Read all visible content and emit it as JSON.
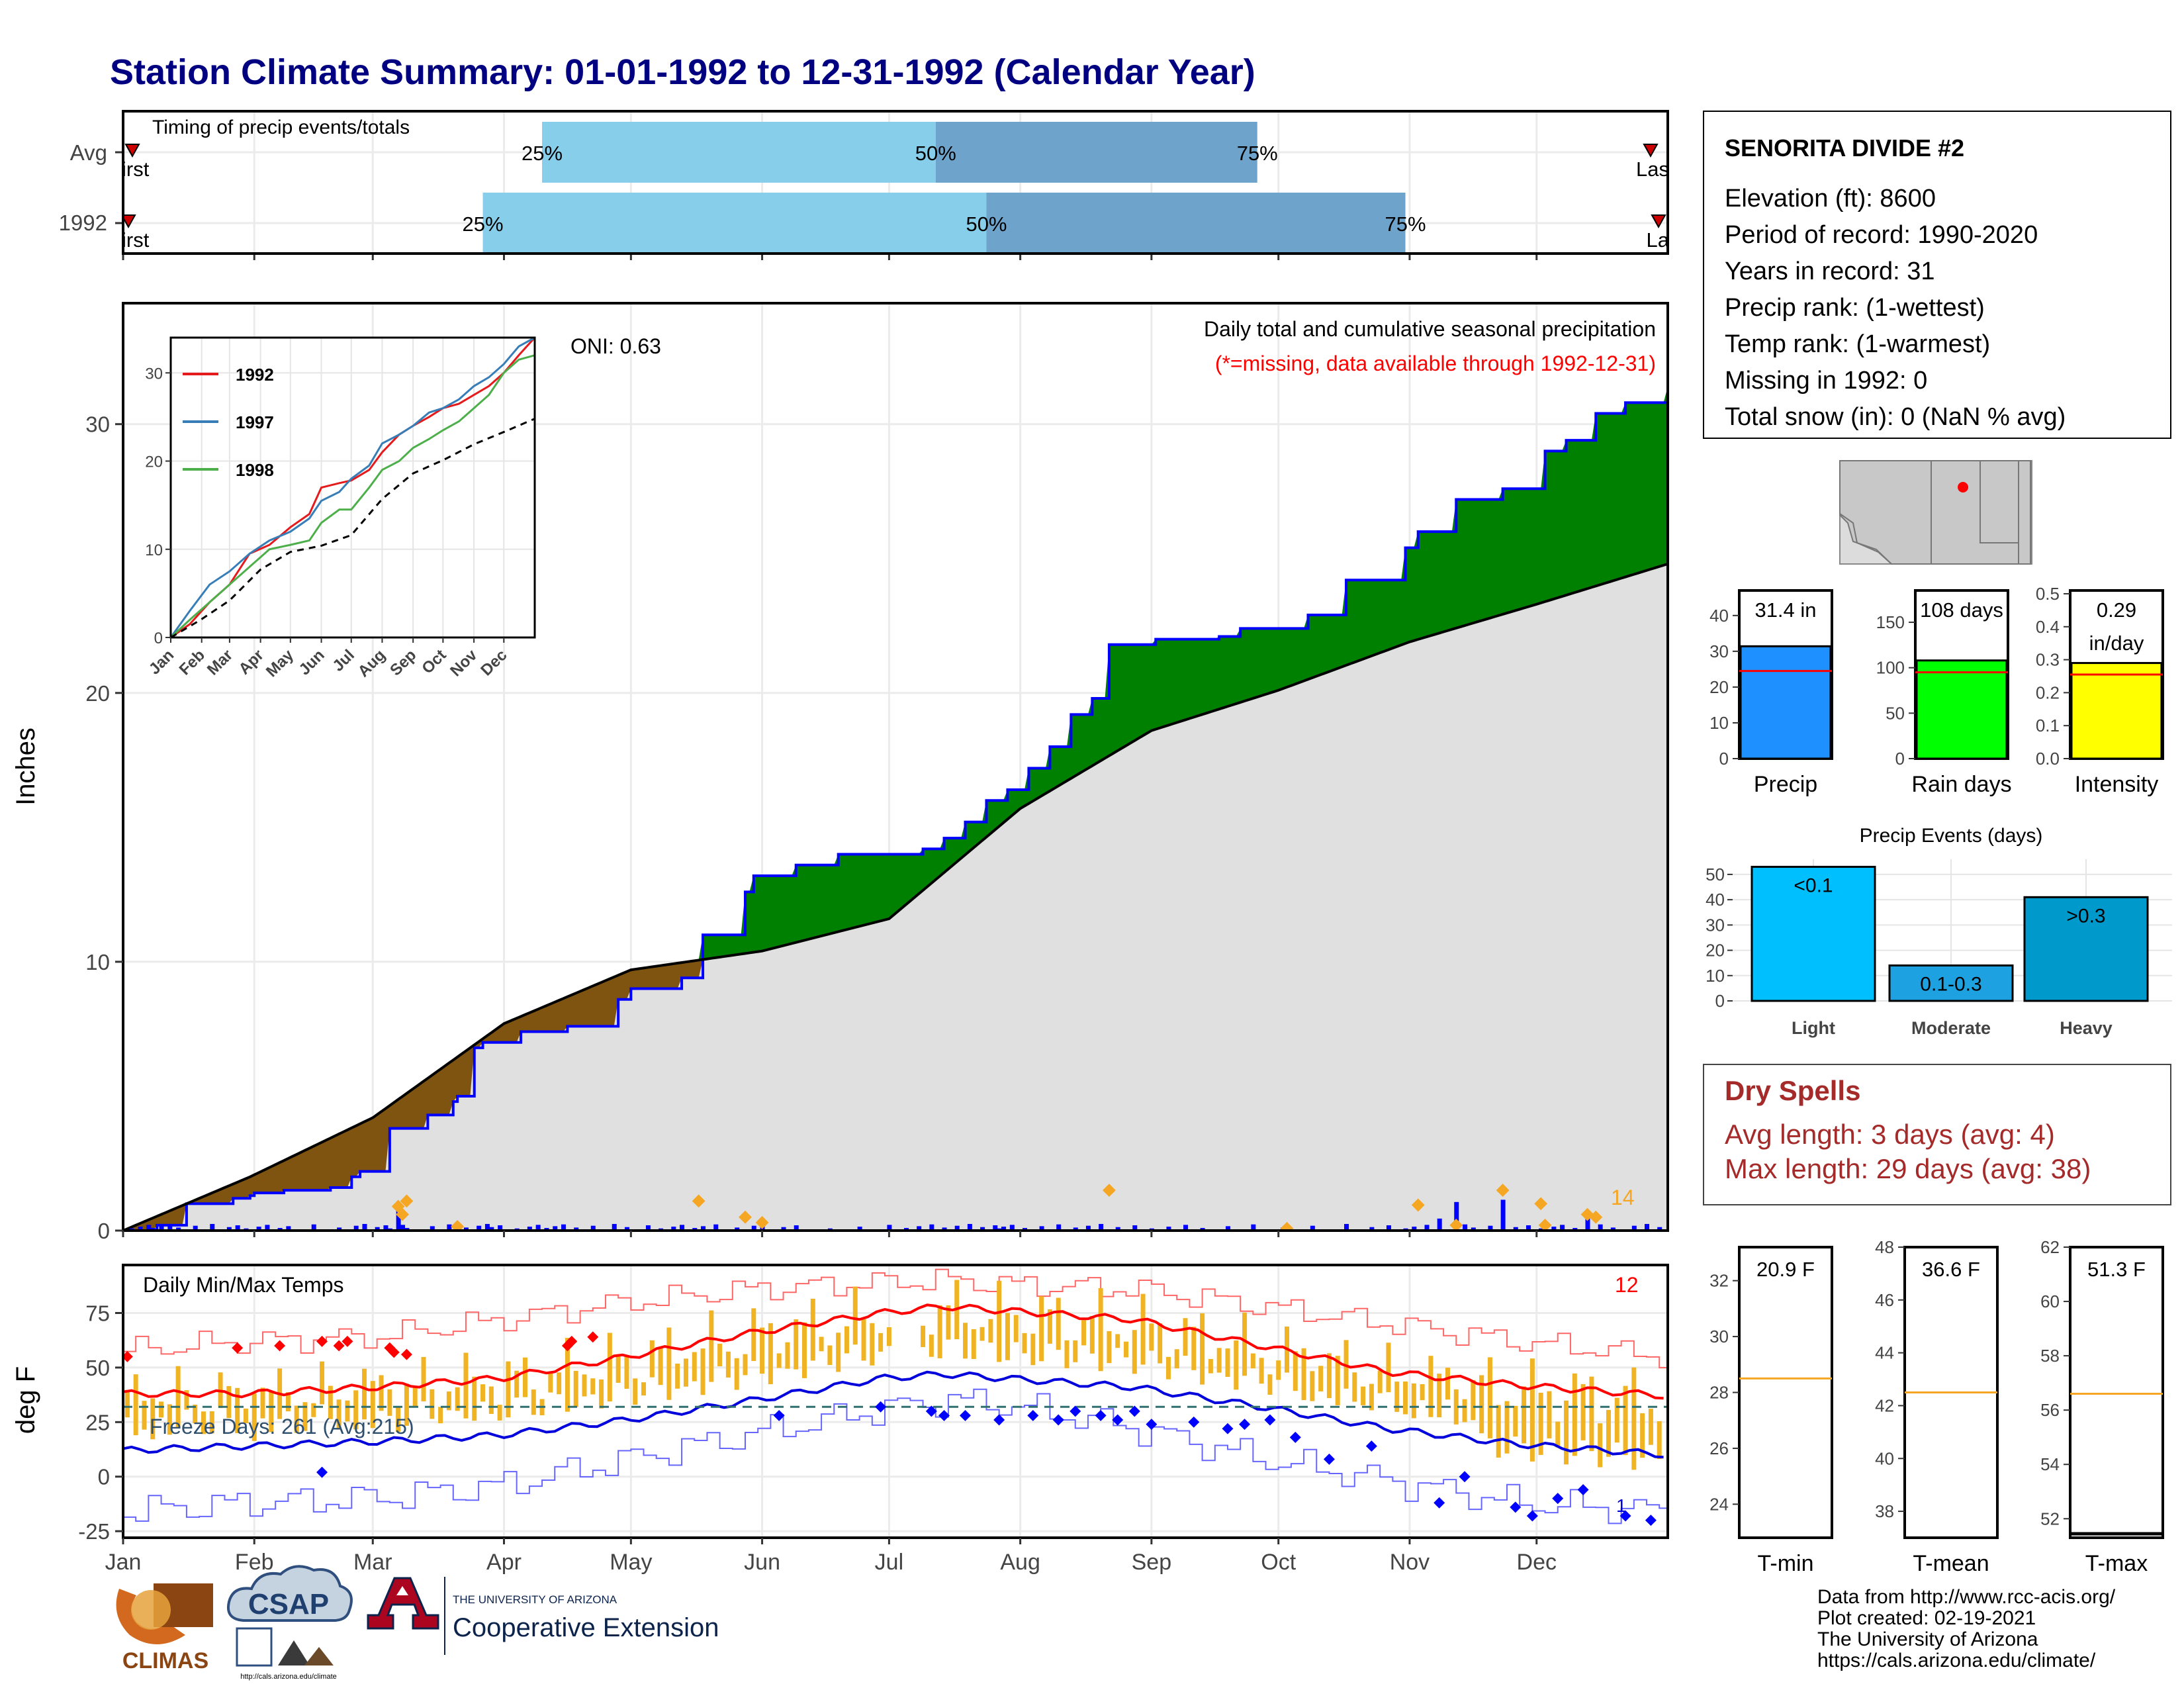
{
  "title": "Station Climate Summary: 01-01-1992 to 12-31-1992 (Calendar Year)",
  "months": [
    "Jan",
    "Feb",
    "Mar",
    "Apr",
    "May",
    "Jun",
    "Jul",
    "Aug",
    "Sep",
    "Oct",
    "Nov",
    "Dec"
  ],
  "colors": {
    "title": "#000080",
    "q_light": "#87ceeb",
    "q_dark": "#6ea3cc",
    "green": "#008000",
    "brown": "#7f5310",
    "gray_fill": "#e0e0e0",
    "bar_blue": "#0000ff",
    "orange": "#f5a623",
    "temp_bar": "#f0b323",
    "red": "#ff0000",
    "blue": "#0000dd",
    "dry_red": "#a52a2a",
    "precip_box": "#1e90ff",
    "raindays_box": "#00ff00",
    "intensity_box": "#ffff00",
    "light_bar": "#00bfff",
    "moderate_bar": "#1ea1e0",
    "heavy_bar": "#0099cc"
  },
  "timing_panel": {
    "label": "Timing of precip events/totals",
    "rows": [
      {
        "name": "Avg",
        "q25_day": 100,
        "q50_day": 193,
        "q75_day": 269,
        "q25_label": "25%",
        "q50_label": "50%",
        "q75_label": "75%",
        "first_label": "irst",
        "last_label": "Las"
      },
      {
        "name": "1992",
        "q25_day": 86,
        "q50_day": 205,
        "q75_day": 304,
        "q25_label": "25%",
        "q50_label": "50%",
        "q75_label": "75%",
        "first_label": "irst",
        "last_label": "La"
      }
    ]
  },
  "precip_panel": {
    "subtitle": "Daily total and cumulative seasonal precipitation",
    "missing_note": "(*=missing, data available through 1992-12-31)",
    "oni": "ONI: 0.63",
    "ylabel": "Inches",
    "corner_count": "14",
    "ylim": [
      0,
      34.5
    ],
    "yticks": [
      0,
      10,
      20,
      30
    ]
  },
  "inset": {
    "ylim": [
      0,
      34
    ],
    "yticks": [
      0,
      10,
      20,
      30
    ],
    "legend": [
      {
        "name": "1992",
        "color": "#e41a1c"
      },
      {
        "name": "1997",
        "color": "#377eb8"
      },
      {
        "name": "1998",
        "color": "#4daf4a"
      }
    ]
  },
  "temp_panel": {
    "label": "Daily Min/Max Temps",
    "ylabel": "deg F",
    "freeze_label": "Freeze Days: 261 (Avg:215)",
    "corner_count": "12",
    "bottom_count": "1",
    "ylim": [
      -28,
      97
    ],
    "yticks": [
      -25,
      0,
      25,
      50,
      75
    ],
    "freeze_line": 32
  },
  "station": {
    "name": "SENORITA DIVIDE #2",
    "lines": [
      "Elevation (ft): 8600",
      "Period of record: 1990-2020",
      "Years in record: 31",
      "Precip rank:  (1-wettest)",
      "Temp rank:  (1-warmest)",
      "Missing in 1992: 0",
      "Total snow (in): 0 (NaN % avg)"
    ]
  },
  "summary_boxes": [
    {
      "name": "Precip",
      "label": "31.4 in",
      "value": 31.4,
      "avg": 24.5,
      "ylim": [
        0,
        47
      ],
      "yticks": [
        0,
        10,
        20,
        30,
        40
      ]
    },
    {
      "name": "Rain days",
      "label": "108 days",
      "value": 108,
      "avg": 95,
      "ylim": [
        0,
        185
      ],
      "yticks": [
        0,
        50,
        100,
        150
      ]
    },
    {
      "name": "Intensity",
      "label": "0.29",
      "label2": "in/day",
      "value": 0.29,
      "avg": 0.255,
      "ylim": [
        0,
        0.51
      ],
      "yticks": [
        0.0,
        0.1,
        0.2,
        0.3,
        0.4,
        0.5
      ]
    }
  ],
  "precip_events": {
    "title": "Precip Events (days)",
    "ylim": [
      0,
      56
    ],
    "yticks": [
      0,
      10,
      20,
      30,
      40,
      50
    ],
    "bars": [
      {
        "name": "Light",
        "label": "<0.1",
        "value": 53
      },
      {
        "name": "Moderate",
        "label": "0.1-0.3",
        "value": 14
      },
      {
        "name": "Heavy",
        "label": ">0.3",
        "value": 41
      }
    ]
  },
  "dry_spells": {
    "title": "Dry Spells",
    "avg": "Avg length: 3 days (avg: 4)",
    "max": "Max length: 29 days (avg: 38)"
  },
  "temp_boxes": [
    {
      "name": "T-min",
      "label": "20.9 F",
      "avg": 28.5,
      "ylim": [
        22.8,
        33.2
      ],
      "yticks": [
        24,
        26,
        28,
        30,
        32
      ]
    },
    {
      "name": "T-mean",
      "label": "36.6 F",
      "avg": 42.5,
      "ylim": [
        37.0,
        48.0
      ],
      "yticks": [
        38,
        40,
        42,
        44,
        46,
        48
      ]
    },
    {
      "name": "T-max",
      "label": "51.3 F",
      "avg": 56.6,
      "ylim": [
        51.3,
        62.0
      ],
      "yticks": [
        52,
        54,
        56,
        58,
        60,
        62
      ]
    }
  ],
  "footer": {
    "lines": [
      "Data from http://www.rcc-acis.org/",
      "Plot created: 02-19-2021",
      "The University of Arizona",
      "https://cals.arizona.edu/climate/"
    ],
    "climas": "CLIMAS",
    "csap": "CSAP",
    "csap_url": "http://cals.arizona.edu/climate",
    "ua_small": "THE UNIVERSITY OF ARIZONA",
    "ua_big": "Cooperative Extension"
  },
  "chart_data": [
    {
      "type": "line",
      "title": "Daily total and cumulative seasonal precipitation",
      "ylabel": "Inches",
      "ylim": [
        0,
        34.5
      ],
      "x_units": "month",
      "series": [
        {
          "name": "1992",
          "x": [
            1,
            9,
            16,
            27,
            31,
            32,
            39,
            43,
            50,
            55,
            57,
            64,
            70,
            73,
            79,
            80,
            84,
            86,
            95,
            106,
            118,
            121,
            133,
            138,
            148,
            150,
            160,
            170,
            180,
            186,
            190,
            195,
            200,
            205,
            210,
            215,
            220,
            225,
            230,
            234,
            245,
            260,
            265,
            281,
            290,
            304,
            307,
            316,
            327,
            337,
            342,
            349,
            356,
            366
          ],
          "y": [
            0,
            0.2,
            1.0,
            1.2,
            1.3,
            1.4,
            1.5,
            1.5,
            1.6,
            2.0,
            2.2,
            3.8,
            3.8,
            4.3,
            4.8,
            5.0,
            6.8,
            7.0,
            7.4,
            7.6,
            8.6,
            9.0,
            9.4,
            11.0,
            12.6,
            13.2,
            13.6,
            14.0,
            14.0,
            14.0,
            14.2,
            14.6,
            15.2,
            16.0,
            16.4,
            17.2,
            18.0,
            19.2,
            19.8,
            21.8,
            22.0,
            22.1,
            22.4,
            22.9,
            24.2,
            25.4,
            26.0,
            27.2,
            27.6,
            29.0,
            29.4,
            30.4,
            30.8,
            31.4
          ]
        },
        {
          "name": "Average",
          "x": [
            1,
            31,
            60,
            91,
            121,
            152,
            182,
            213,
            244,
            274,
            305,
            335,
            366
          ],
          "y": [
            0,
            2.0,
            4.2,
            7.7,
            9.7,
            10.4,
            11.6,
            15.7,
            18.6,
            20.1,
            21.9,
            23.3,
            24.8
          ]
        }
      ]
    },
    {
      "type": "line",
      "title": "",
      "ylim": [
        0,
        34
      ],
      "x_units": "month",
      "series": [
        {
          "name": "1992",
          "x": [
            1,
            20,
            40,
            60,
            80,
            100,
            121,
            140,
            152,
            170,
            182,
            200,
            213,
            230,
            244,
            260,
            274,
            290,
            305,
            320,
            335,
            350,
            366
          ],
          "y": [
            0,
            1.5,
            4,
            6,
            9.5,
            10.5,
            12.5,
            14,
            17,
            17.5,
            17.8,
            19,
            21,
            23,
            24,
            25,
            26,
            26.5,
            27.5,
            28.5,
            30,
            32,
            34
          ]
        },
        {
          "name": "1997",
          "x": [
            1,
            20,
            40,
            60,
            80,
            100,
            121,
            140,
            152,
            170,
            182,
            200,
            213,
            230,
            244,
            260,
            274,
            290,
            305,
            320,
            335,
            350,
            366
          ],
          "y": [
            0,
            3,
            6,
            7.5,
            9.5,
            11,
            12,
            13.5,
            15.5,
            16.5,
            18,
            19.5,
            22,
            23,
            24,
            25.5,
            26,
            27,
            28.5,
            29.5,
            31,
            33,
            34
          ]
        },
        {
          "name": "1998",
          "x": [
            1,
            20,
            40,
            60,
            80,
            100,
            121,
            140,
            152,
            170,
            182,
            200,
            213,
            230,
            244,
            260,
            274,
            290,
            305,
            320,
            335,
            350,
            366
          ],
          "y": [
            0,
            2,
            4,
            6,
            8,
            10,
            10.5,
            11,
            13,
            14.5,
            14.5,
            17,
            19,
            20,
            21.5,
            22.5,
            23.5,
            24.5,
            26,
            27.5,
            30,
            31.5,
            32
          ]
        },
        {
          "name": "Average",
          "x": [
            1,
            31,
            60,
            91,
            121,
            152,
            182,
            213,
            244,
            274,
            305,
            335,
            366
          ],
          "y": [
            0,
            2.0,
            4.2,
            7.7,
            9.7,
            10.4,
            11.6,
            15.7,
            18.6,
            20.1,
            21.9,
            23.3,
            24.8
          ]
        }
      ]
    },
    {
      "type": "line",
      "title": "Daily Min/Max Temps",
      "ylabel": "deg F",
      "ylim": [
        -28,
        97
      ],
      "x_units": "month",
      "series": [
        {
          "name": "Avg max",
          "x": [
            1,
            30,
            60,
            90,
            120,
            150,
            180,
            195,
            210,
            240,
            270,
            300,
            330,
            366
          ],
          "y": [
            38,
            38,
            41,
            45,
            55,
            66,
            75,
            78,
            76,
            72,
            60,
            48,
            42,
            37
          ]
        },
        {
          "name": "Avg min",
          "x": [
            1,
            30,
            60,
            90,
            120,
            150,
            180,
            195,
            210,
            240,
            270,
            300,
            330,
            366
          ],
          "y": [
            12,
            14,
            16,
            19,
            26,
            35,
            45,
            47,
            45,
            41,
            32,
            22,
            15,
            10
          ]
        },
        {
          "name": "Record high",
          "x": [
            1,
            30,
            60,
            90,
            120,
            150,
            180,
            195,
            210,
            240,
            270,
            300,
            330,
            366
          ],
          "y": [
            58,
            62,
            64,
            72,
            80,
            86,
            89,
            90,
            88,
            86,
            78,
            70,
            62,
            55
          ]
        },
        {
          "name": "Record low",
          "x": [
            1,
            30,
            60,
            90,
            120,
            150,
            180,
            195,
            210,
            240,
            270,
            300,
            330,
            366
          ],
          "y": [
            -16,
            -12,
            -10,
            -4,
            8,
            20,
            31,
            35,
            33,
            22,
            8,
            -2,
            -12,
            -16
          ]
        }
      ]
    },
    {
      "type": "bar",
      "title": "Precip Events (days)",
      "categories": [
        "Light",
        "Moderate",
        "Heavy"
      ],
      "values": [
        53,
        14,
        41
      ],
      "ylim": [
        0,
        56
      ]
    },
    {
      "type": "bar",
      "categories": [
        "Precip",
        "Rain days",
        "Intensity"
      ],
      "series": [
        {
          "name": "1992",
          "values": [
            31.4,
            108,
            0.29
          ]
        },
        {
          "name": "Average",
          "values": [
            24.5,
            95,
            0.255
          ]
        }
      ]
    },
    {
      "type": "bar",
      "categories": [
        "T-min",
        "T-mean",
        "T-max"
      ],
      "series": [
        {
          "name": "1992",
          "values": [
            20.9,
            36.6,
            51.3
          ]
        },
        {
          "name": "Average",
          "values": [
            28.5,
            42.5,
            56.6
          ]
        }
      ]
    }
  ]
}
